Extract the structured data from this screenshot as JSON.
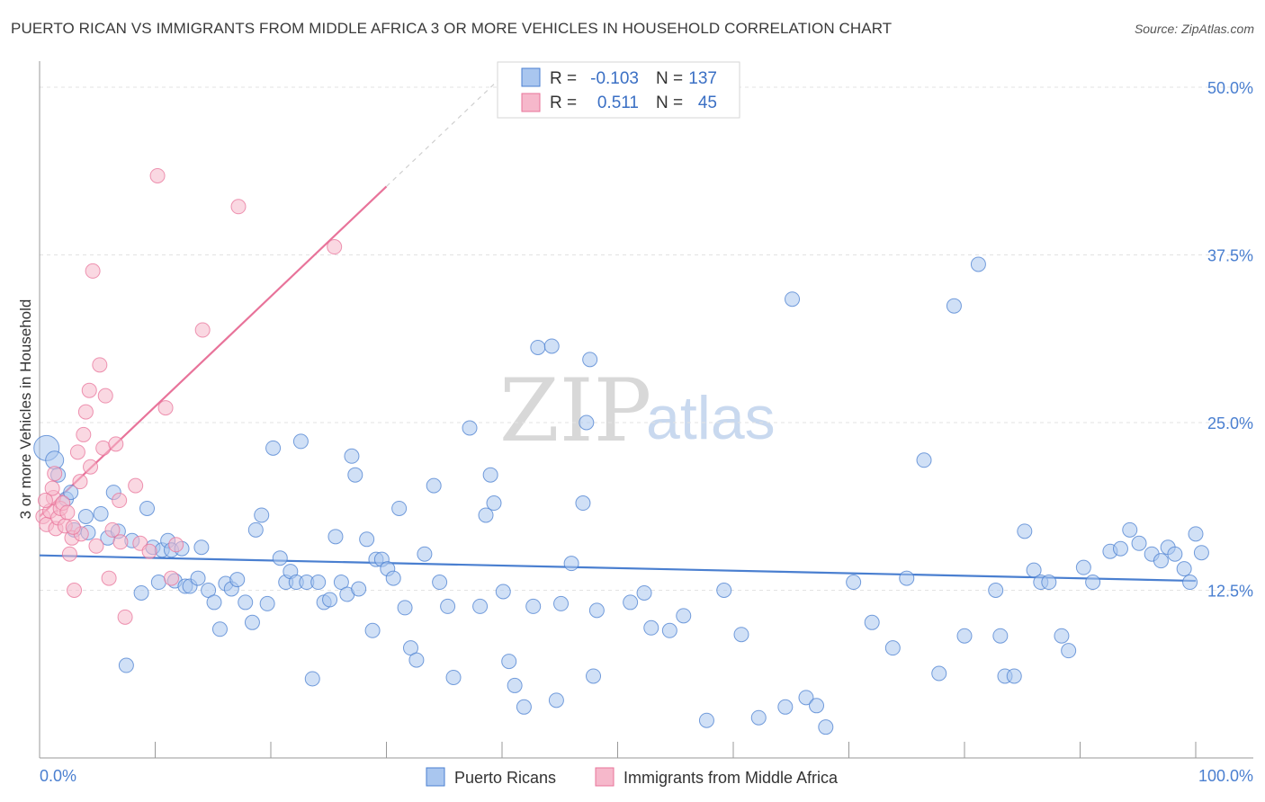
{
  "title": "PUERTO RICAN VS IMMIGRANTS FROM MIDDLE AFRICA 3 OR MORE VEHICLES IN HOUSEHOLD CORRELATION CHART",
  "source": "Source: ZipAtlas.com",
  "watermark": {
    "zip": "ZIP",
    "atlas": "atlas"
  },
  "colors": {
    "blue": "#4a7fd0",
    "blue_fill": "#a9c6ef",
    "pink": "#e8739a",
    "pink_fill": "#f6b8cb",
    "grid": "#e3e3e3"
  },
  "legend": {
    "rows": [
      {
        "r_label": "R =",
        "r_value": "-0.103",
        "n_label": "N =",
        "n_value": "137",
        "series": "blue"
      },
      {
        "r_label": "R =",
        "r_value": "0.511",
        "n_label": "N =",
        "n_value": "45",
        "series": "pink"
      }
    ]
  },
  "bottom_legend": [
    "Puerto Ricans",
    "Immigrants from Middle Africa"
  ],
  "chart_data": {
    "type": "scatter",
    "title": "PUERTO RICAN VS IMMIGRANTS FROM MIDDLE AFRICA 3 OR MORE VEHICLES IN HOUSEHOLD CORRELATION CHART",
    "xlabel": "",
    "ylabel": "3 or more Vehicles in Household",
    "xlim": [
      0,
      100
    ],
    "ylim": [
      0,
      50
    ],
    "x_tick_labels": [
      "0.0%",
      "100.0%"
    ],
    "y_tick_labels": [
      "12.5%",
      "25.0%",
      "37.5%",
      "50.0%"
    ],
    "y_ticks": [
      12.5,
      25.0,
      37.5,
      50.0
    ],
    "series": [
      {
        "name": "Puerto Ricans",
        "color": "blue",
        "trend": {
          "x": [
            0,
            100
          ],
          "y": [
            15.1,
            13.2
          ]
        },
        "points": [
          [
            0.6,
            23.1,
            14
          ],
          [
            1.3,
            22.2,
            10
          ],
          [
            1.6,
            21.1,
            8
          ],
          [
            2.3,
            19.3,
            8
          ],
          [
            2.7,
            19.8,
            8
          ],
          [
            3.0,
            17.0,
            8
          ],
          [
            4.0,
            18.0,
            8
          ],
          [
            5.3,
            18.2,
            8
          ],
          [
            4.2,
            16.8,
            8
          ],
          [
            5.9,
            16.4,
            8
          ],
          [
            6.4,
            19.8,
            8
          ],
          [
            6.8,
            16.9,
            8
          ],
          [
            7.5,
            6.9,
            8
          ],
          [
            8.0,
            16.2,
            8
          ],
          [
            8.8,
            12.3,
            8
          ],
          [
            9.3,
            18.6,
            8
          ],
          [
            9.8,
            15.7,
            8
          ],
          [
            10.3,
            13.1,
            8
          ],
          [
            10.6,
            15.5,
            8
          ],
          [
            11.1,
            16.2,
            8
          ],
          [
            11.4,
            15.5,
            8
          ],
          [
            11.7,
            13.2,
            8
          ],
          [
            12.3,
            15.6,
            8
          ],
          [
            12.6,
            12.8,
            8
          ],
          [
            13.0,
            12.8,
            8
          ],
          [
            13.7,
            13.4,
            8
          ],
          [
            14.0,
            15.7,
            8
          ],
          [
            14.6,
            12.5,
            8
          ],
          [
            15.1,
            11.6,
            8
          ],
          [
            15.6,
            9.6,
            8
          ],
          [
            16.1,
            13.0,
            8
          ],
          [
            16.6,
            12.6,
            8
          ],
          [
            17.1,
            13.3,
            8
          ],
          [
            17.8,
            11.6,
            8
          ],
          [
            18.4,
            10.1,
            8
          ],
          [
            18.7,
            17.0,
            8
          ],
          [
            19.2,
            18.1,
            8
          ],
          [
            19.7,
            11.5,
            8
          ],
          [
            20.2,
            23.1,
            8
          ],
          [
            20.8,
            14.9,
            8
          ],
          [
            21.3,
            13.1,
            8
          ],
          [
            21.7,
            13.9,
            8
          ],
          [
            22.2,
            13.1,
            8
          ],
          [
            22.6,
            23.6,
            8
          ],
          [
            23.1,
            13.1,
            8
          ],
          [
            23.6,
            5.9,
            8
          ],
          [
            24.1,
            13.1,
            8
          ],
          [
            24.6,
            11.6,
            8
          ],
          [
            25.1,
            11.8,
            8
          ],
          [
            25.6,
            16.5,
            8
          ],
          [
            26.1,
            13.1,
            8
          ],
          [
            26.6,
            12.2,
            8
          ],
          [
            27.0,
            22.5,
            8
          ],
          [
            27.3,
            21.1,
            8
          ],
          [
            27.6,
            12.6,
            8
          ],
          [
            28.3,
            16.3,
            8
          ],
          [
            28.8,
            9.5,
            8
          ],
          [
            29.1,
            14.8,
            8
          ],
          [
            29.6,
            14.8,
            8
          ],
          [
            30.1,
            14.1,
            8
          ],
          [
            30.6,
            13.4,
            8
          ],
          [
            31.1,
            18.6,
            8
          ],
          [
            31.6,
            11.2,
            8
          ],
          [
            32.1,
            8.2,
            8
          ],
          [
            32.6,
            7.3,
            8
          ],
          [
            33.3,
            15.2,
            8
          ],
          [
            34.1,
            20.3,
            8
          ],
          [
            34.6,
            13.1,
            8
          ],
          [
            35.3,
            11.3,
            8
          ],
          [
            35.8,
            6.0,
            8
          ],
          [
            37.2,
            24.6,
            8
          ],
          [
            38.1,
            11.3,
            8
          ],
          [
            38.6,
            18.1,
            8
          ],
          [
            39.0,
            21.1,
            8
          ],
          [
            39.3,
            19.0,
            8
          ],
          [
            40.1,
            12.4,
            8
          ],
          [
            40.6,
            7.2,
            8
          ],
          [
            41.1,
            5.4,
            8
          ],
          [
            41.9,
            3.8,
            8
          ],
          [
            42.7,
            11.3,
            8
          ],
          [
            43.1,
            30.6,
            8
          ],
          [
            44.3,
            30.7,
            8
          ],
          [
            44.7,
            4.3,
            8
          ],
          [
            45.1,
            11.5,
            8
          ],
          [
            46.0,
            14.5,
            8
          ],
          [
            47.0,
            19.0,
            8
          ],
          [
            47.3,
            25.0,
            8
          ],
          [
            47.6,
            29.7,
            8
          ],
          [
            47.9,
            6.1,
            8
          ],
          [
            48.2,
            11.0,
            8
          ],
          [
            51.1,
            11.6,
            8
          ],
          [
            52.3,
            12.3,
            8
          ],
          [
            52.9,
            9.7,
            8
          ],
          [
            54.5,
            9.5,
            8
          ],
          [
            55.7,
            10.6,
            8
          ],
          [
            57.7,
            2.8,
            8
          ],
          [
            59.2,
            12.5,
            8
          ],
          [
            60.7,
            9.2,
            8
          ],
          [
            62.2,
            3.0,
            8
          ],
          [
            64.5,
            3.8,
            8
          ],
          [
            65.1,
            34.2,
            8
          ],
          [
            66.3,
            4.5,
            8
          ],
          [
            67.2,
            3.9,
            8
          ],
          [
            68.0,
            2.3,
            8
          ],
          [
            70.4,
            13.1,
            8
          ],
          [
            72.0,
            10.1,
            8
          ],
          [
            73.8,
            8.2,
            8
          ],
          [
            75.0,
            13.4,
            8
          ],
          [
            76.5,
            22.2,
            8
          ],
          [
            77.8,
            6.3,
            8
          ],
          [
            79.1,
            33.7,
            8
          ],
          [
            80.0,
            9.1,
            8
          ],
          [
            81.2,
            36.8,
            8
          ],
          [
            82.7,
            12.5,
            8
          ],
          [
            83.1,
            9.1,
            8
          ],
          [
            83.5,
            6.1,
            8
          ],
          [
            84.3,
            6.1,
            8
          ],
          [
            85.2,
            16.9,
            8
          ],
          [
            86.0,
            14.0,
            8
          ],
          [
            86.6,
            13.1,
            8
          ],
          [
            87.3,
            13.1,
            8
          ],
          [
            88.4,
            9.1,
            8
          ],
          [
            89.0,
            8.0,
            8
          ],
          [
            90.3,
            14.2,
            8
          ],
          [
            91.1,
            13.1,
            8
          ],
          [
            92.6,
            15.4,
            8
          ],
          [
            93.5,
            15.6,
            8
          ],
          [
            94.3,
            17.0,
            8
          ],
          [
            95.1,
            16.0,
            8
          ],
          [
            96.2,
            15.2,
            8
          ],
          [
            97.0,
            14.7,
            8
          ],
          [
            97.6,
            15.7,
            8
          ],
          [
            98.2,
            15.2,
            8
          ],
          [
            99.0,
            14.1,
            8
          ],
          [
            99.5,
            13.1,
            8
          ],
          [
            100.0,
            16.7,
            8
          ],
          [
            100.5,
            15.3,
            8
          ]
        ]
      },
      {
        "name": "Immigrants from Middle Africa",
        "color": "pink",
        "trend": {
          "x": [
            0,
            30
          ],
          "y": [
            18.0,
            42.6
          ],
          "dashed_x": [
            30,
            40
          ],
          "dashed_y": [
            42.6,
            50.8
          ]
        },
        "points": [
          [
            0.3,
            18.0,
            8
          ],
          [
            0.6,
            17.4,
            8
          ],
          [
            0.9,
            18.4,
            8
          ],
          [
            1.2,
            19.4,
            8
          ],
          [
            1.4,
            17.1,
            8
          ],
          [
            1.6,
            17.9,
            8
          ],
          [
            1.8,
            18.6,
            8
          ],
          [
            2.0,
            19.0,
            8
          ],
          [
            2.2,
            17.3,
            8
          ],
          [
            2.4,
            18.3,
            8
          ],
          [
            2.6,
            15.2,
            8
          ],
          [
            2.8,
            16.4,
            8
          ],
          [
            3.0,
            12.5,
            8
          ],
          [
            3.3,
            22.8,
            8
          ],
          [
            3.5,
            20.6,
            8
          ],
          [
            3.8,
            24.1,
            8
          ],
          [
            4.0,
            25.8,
            8
          ],
          [
            4.3,
            27.4,
            8
          ],
          [
            4.6,
            36.3,
            8
          ],
          [
            4.9,
            15.8,
            8
          ],
          [
            5.2,
            29.3,
            8
          ],
          [
            5.5,
            23.1,
            8
          ],
          [
            5.7,
            27.0,
            8
          ],
          [
            6.0,
            13.4,
            8
          ],
          [
            6.3,
            17.0,
            8
          ],
          [
            6.6,
            23.4,
            8
          ],
          [
            7.0,
            16.1,
            8
          ],
          [
            7.4,
            10.5,
            8
          ],
          [
            8.3,
            20.3,
            8
          ],
          [
            8.7,
            16.0,
            8
          ],
          [
            9.5,
            15.4,
            8
          ],
          [
            10.2,
            43.4,
            8
          ],
          [
            10.9,
            26.1,
            8
          ],
          [
            11.4,
            13.4,
            8
          ],
          [
            11.8,
            15.9,
            8
          ],
          [
            14.1,
            31.9,
            8
          ],
          [
            17.2,
            41.1,
            8
          ],
          [
            25.5,
            38.1,
            8
          ],
          [
            6.9,
            19.2,
            8
          ],
          [
            3.6,
            16.7,
            8
          ],
          [
            2.9,
            17.2,
            8
          ],
          [
            1.1,
            20.1,
            8
          ],
          [
            0.5,
            19.2,
            8
          ],
          [
            1.3,
            21.2,
            8
          ],
          [
            4.4,
            21.7,
            8
          ]
        ]
      }
    ]
  }
}
